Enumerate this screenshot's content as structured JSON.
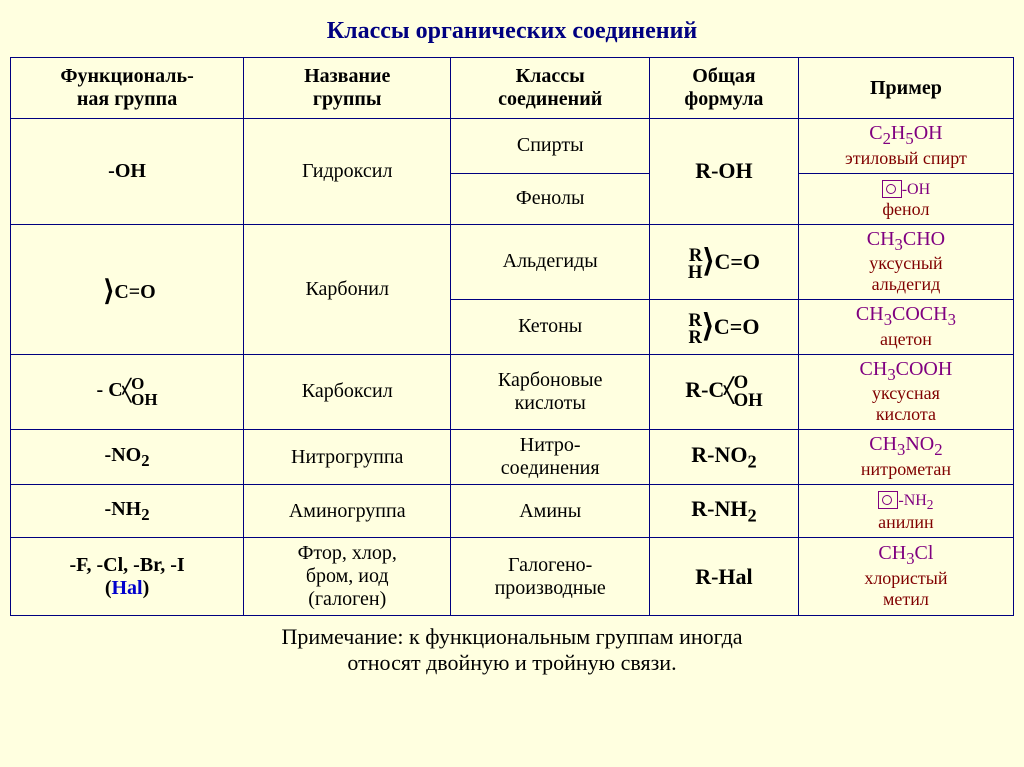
{
  "title": "Классы органических соединений",
  "colors": {
    "background": "#ffffe0",
    "border": "#000080",
    "title": "#000080",
    "formula_example": "#800080",
    "example_name": "#800000",
    "hal": "#0000cc"
  },
  "headers": {
    "c1": "Функциональ-\nная группа",
    "c2": "Название\nгруппы",
    "c3": "Классы\nсоединений",
    "c4": "Общая\nформула",
    "c5": "Пример"
  },
  "functional_groups": [
    {
      "group": "-OH",
      "name": "Гидроксил",
      "formula": "R-OH",
      "classes": [
        "Спирты",
        "Фенолы"
      ],
      "examples": [
        {
          "formula_html": "C<sub>2</sub>H<sub>5</sub>OH",
          "name": "этиловый спирт"
        },
        {
          "ring": true,
          "ring_suffix": "-OH",
          "name": "фенол"
        }
      ]
    },
    {
      "group_html": "&nbsp;<span class='angle'>&rang;</span>C=O",
      "name": "Карбонил",
      "classes": [
        "Альдегиды",
        "Кетоны"
      ],
      "formulas_split": [
        {
          "left_top": "R",
          "left_bot": "H",
          "rest": "C=O"
        },
        {
          "left_top": "R",
          "left_bot": "R",
          "rest": "C=O"
        }
      ],
      "examples": [
        {
          "formula_html": "CH<sub>3</sub>CHO",
          "name": "уксусный\nальдегид"
        },
        {
          "formula_html": "CH<sub>3</sub>COCH<sub>3</sub>",
          "name": "ацетон"
        }
      ]
    },
    {
      "group_carboxyl": true,
      "name": "Карбоксил",
      "classes": [
        "Карбоновые\nкислоты"
      ],
      "formula_carboxyl": true,
      "examples": [
        {
          "formula_html": "CH<sub>3</sub>COOH",
          "name": "уксусная\nкислота"
        }
      ]
    },
    {
      "group_html": "-NO<sub>2</sub>",
      "name": "Нитрогруппа",
      "classes": [
        "Нитро-\nсоединения"
      ],
      "formula_html": "R-NO<sub>2</sub>",
      "examples": [
        {
          "formula_html": "CH<sub>3</sub>NO<sub>2</sub>",
          "name": "нитрометан"
        }
      ]
    },
    {
      "group_html": "-NH<sub>2</sub>",
      "name": "Аминогруппа",
      "classes": [
        "Амины"
      ],
      "formula_html": "R-NH<sub>2</sub>",
      "examples": [
        {
          "ring": true,
          "ring_suffix_html": "-NH<sub>2</sub>",
          "name": "анилин"
        }
      ]
    },
    {
      "group_hal": {
        "prefix": "-F, -Cl, -Br, -I",
        "label": "(Hal)"
      },
      "name": "Фтор, хлор,\nбром, иод\n(галоген)",
      "classes": [
        "Галогено-\nпроизводные"
      ],
      "formula_html": "R-Hal",
      "examples": [
        {
          "formula_html": "CH<sub>3</sub>Cl",
          "name": "хлористый\nметил"
        }
      ]
    }
  ],
  "note": "Примечание: к функциональным группам иногда\nотносят двойную и тройную связи."
}
